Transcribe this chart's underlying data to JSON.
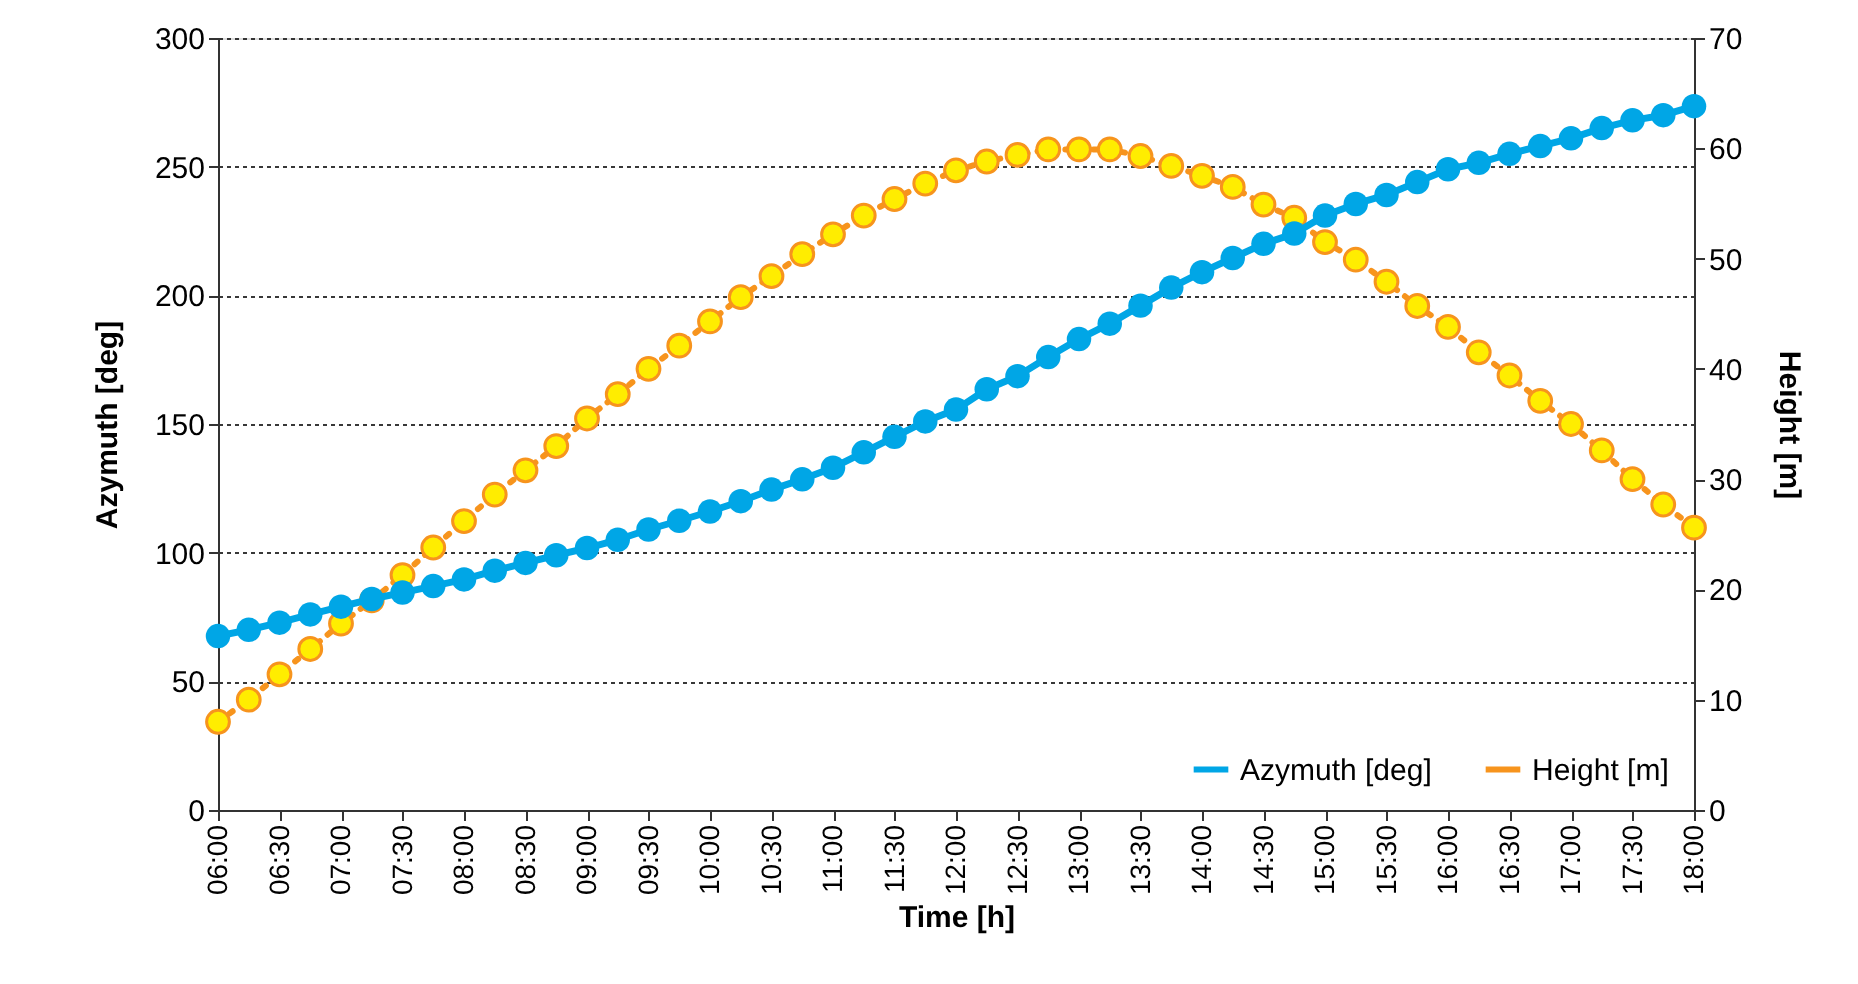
{
  "chart_data": {
    "type": "line",
    "xlabel": "Time [h]",
    "ylabel": "Azymuth [deg]",
    "y2label": "Height [m]",
    "x": [
      6,
      6.25,
      6.5,
      6.75,
      7,
      7.25,
      7.5,
      7.75,
      8,
      8.25,
      8.5,
      8.75,
      9,
      9.25,
      9.5,
      9.75,
      10,
      10.25,
      10.5,
      10.75,
      11,
      11.25,
      11.5,
      11.75,
      12,
      12.25,
      12.5,
      12.75,
      13,
      13.25,
      13.5,
      13.75,
      14,
      14.25,
      14.5,
      14.75,
      15,
      15.25,
      15.5,
      15.75,
      16,
      16.25,
      16.5,
      16.75,
      17,
      17.25,
      17.5,
      17.75,
      18
    ],
    "series": [
      {
        "name": "Azymuth [deg]",
        "color": "#00a6e6",
        "axis": "y",
        "marker": "circle",
        "line_style": "solid",
        "values": [
          67.6,
          70,
          72.8,
          76,
          79,
          82,
          84.5,
          87,
          89.6,
          93,
          96,
          99,
          101.8,
          105,
          109,
          112.4,
          116,
          120,
          124.5,
          128.5,
          133,
          139,
          145,
          151,
          155.6,
          163.5,
          168.6,
          176,
          183,
          189,
          196,
          203,
          209,
          214.5,
          220,
          224,
          231,
          235.5,
          239,
          244,
          249,
          251.5,
          255,
          258,
          261,
          265,
          268,
          270,
          273.5
        ]
      },
      {
        "name": "Height [m]",
        "color": "#f7941d",
        "axis": "y2",
        "marker": "circle",
        "line_style": "dotted",
        "values": [
          8.0,
          10.0,
          12.3,
          14.6,
          16.9,
          19.0,
          21.3,
          23.8,
          26.2,
          28.6,
          30.8,
          33.0,
          35.5,
          37.7,
          40.0,
          42.1,
          44.3,
          46.5,
          48.4,
          50.4,
          52.2,
          53.9,
          55.4,
          56.8,
          58.0,
          58.8,
          59.4,
          59.9,
          59.9,
          59.9,
          59.3,
          58.4,
          57.5,
          56.5,
          54.9,
          53.7,
          51.5,
          49.9,
          47.9,
          45.7,
          43.8,
          41.5,
          39.4,
          37.1,
          35.0,
          32.6,
          30.0,
          27.7,
          25.6
        ]
      }
    ],
    "xlim": [
      6,
      18
    ],
    "xticks": [
      {
        "value": 6,
        "label": "06:00"
      },
      {
        "value": 6.5,
        "label": "06:30"
      },
      {
        "value": 7,
        "label": "07:00"
      },
      {
        "value": 7.5,
        "label": "07:30"
      },
      {
        "value": 8,
        "label": "08:00"
      },
      {
        "value": 8.5,
        "label": "08:30"
      },
      {
        "value": 9,
        "label": "09:00"
      },
      {
        "value": 9.5,
        "label": "09:30"
      },
      {
        "value": 10,
        "label": "10:00"
      },
      {
        "value": 10.5,
        "label": "10:30"
      },
      {
        "value": 11,
        "label": "11:00"
      },
      {
        "value": 11.5,
        "label": "11:30"
      },
      {
        "value": 12,
        "label": "12:00"
      },
      {
        "value": 12.5,
        "label": "12:30"
      },
      {
        "value": 13,
        "label": "13:00"
      },
      {
        "value": 13.5,
        "label": "13:30"
      },
      {
        "value": 14,
        "label": "14:00"
      },
      {
        "value": 14.5,
        "label": "14:30"
      },
      {
        "value": 15,
        "label": "15:00"
      },
      {
        "value": 15.5,
        "label": "15:30"
      },
      {
        "value": 16,
        "label": "16:00"
      },
      {
        "value": 16.5,
        "label": "16:30"
      },
      {
        "value": 17,
        "label": "17:00"
      },
      {
        "value": 17.5,
        "label": "17:30"
      },
      {
        "value": 18,
        "label": "18:00"
      }
    ],
    "ylim": [
      0,
      300
    ],
    "yticks": [
      0,
      50,
      100,
      150,
      200,
      250,
      300
    ],
    "y2lim": [
      0,
      70
    ],
    "y2ticks": [
      0,
      10,
      20,
      30,
      40,
      50,
      60,
      70
    ],
    "grid": "y",
    "legend": "bottom right"
  }
}
